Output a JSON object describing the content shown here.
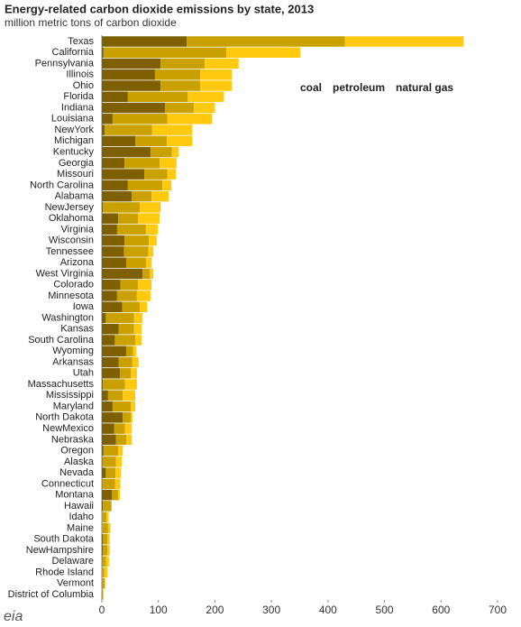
{
  "chart_data": {
    "type": "stacked_barh",
    "title": "Energy-related carbon dioxide emissions  by state, 2013",
    "subtitle": "million metric tons of carbon dioxide",
    "source_logo": "eia",
    "categories": [
      "Texas",
      "California",
      "Pennsylvania",
      "Illinois",
      "Ohio",
      "Florida",
      "Indiana",
      "Louisiana",
      "NewYork",
      "Michigan",
      "Kentucky",
      "Georgia",
      "Missouri",
      "North Carolina",
      "Alabama",
      "NewJersey",
      "Oklahoma",
      "Virginia",
      "Wisconsin",
      "Tennessee",
      "Arizona",
      "West Virginia",
      "Colorado",
      "Minnesota",
      "Iowa",
      "Washington",
      "Kansas",
      "South Carolina",
      "Wyoming",
      "Arkansas",
      "Utah",
      "Massachusetts",
      "Mississippi",
      "Maryland",
      "North Dakota",
      "NewMexico",
      "Nebraska",
      "Oregon",
      "Alaska",
      "Nevada",
      "Connecticut",
      "Montana",
      "Hawaii",
      "Idaho",
      "Maine",
      "South Dakota",
      "NewHampshire",
      "Delaware",
      "Rhode Island",
      "Vermont",
      "District of Columbia"
    ],
    "series": [
      {
        "name": "coal",
        "color": "#7f6000",
        "values": [
          150,
          3,
          104,
          94,
          104,
          46,
          112,
          19,
          5,
          59,
          86,
          40,
          75,
          46,
          53,
          2,
          29,
          27,
          40,
          39,
          43,
          72,
          33,
          27,
          36,
          7,
          30,
          23,
          43,
          30,
          32,
          2,
          11,
          19,
          37,
          22,
          25,
          3,
          1,
          7,
          0.5,
          18,
          2,
          0,
          0,
          2,
          2,
          0.5,
          0,
          0,
          0
        ]
      },
      {
        "name": "petroleum",
        "color": "#c9a100",
        "values": [
          280,
          217,
          78,
          80,
          70,
          106,
          51,
          97,
          84,
          56,
          38,
          62,
          41,
          61,
          35,
          65,
          35,
          51,
          43,
          43,
          35,
          13,
          31,
          35,
          31,
          50,
          27,
          36,
          12,
          24,
          19,
          39,
          26,
          32,
          14,
          19,
          18,
          26,
          24,
          17,
          23,
          11,
          15,
          8,
          11,
          8,
          8,
          7,
          4,
          5,
          2
        ]
      },
      {
        "name": "natural gas",
        "color": "#ffc910",
        "values": [
          210,
          131,
          60,
          56,
          56,
          64,
          37,
          79,
          71,
          45,
          12,
          30,
          15,
          16,
          30,
          37,
          38,
          21,
          14,
          9,
          10,
          6,
          24,
          24,
          13,
          15,
          13,
          11,
          6,
          11,
          11,
          21,
          22,
          8,
          3,
          12,
          10,
          8,
          10,
          10,
          9,
          3,
          0,
          4,
          4,
          4,
          4,
          5,
          6,
          1,
          1
        ]
      }
    ],
    "xlim": [
      0,
      700
    ],
    "xticks": [
      0,
      100,
      200,
      300,
      400,
      500,
      600,
      700
    ],
    "legend": "upper right"
  }
}
